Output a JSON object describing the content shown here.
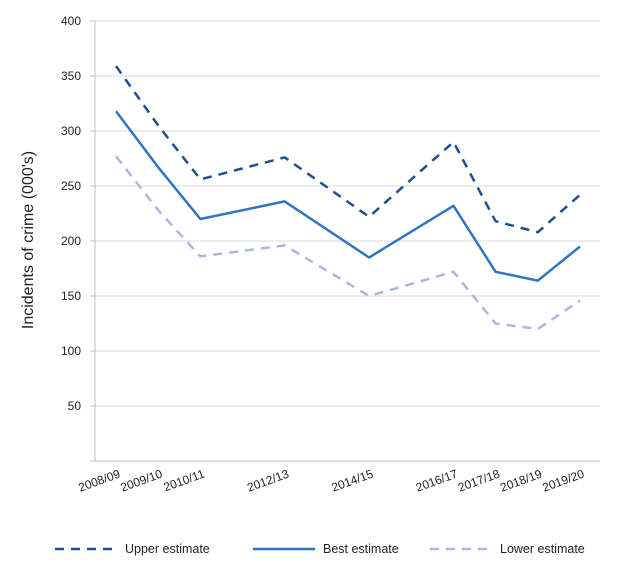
{
  "chart_data": {
    "type": "line",
    "title": "",
    "xlabel": "",
    "ylabel": "Incidents of crime (000's)",
    "ylim": [
      0,
      400
    ],
    "yticks": [
      50,
      100,
      150,
      200,
      250,
      300,
      350,
      400
    ],
    "grid": true,
    "legend_position": "bottom",
    "x": [
      "2008/09",
      "2009/10",
      "2010/11",
      "2012/13",
      "2014/15",
      "2016/17",
      "2017/18",
      "2018/19",
      "2019/20"
    ],
    "x_numeric": [
      2008,
      2009,
      2010,
      2012,
      2014,
      2016,
      2017,
      2018,
      2019
    ],
    "series": [
      {
        "name": "Upper estimate",
        "color": "#1f4e96",
        "style": "dashed",
        "values": [
          359,
          305,
          256,
          276,
          222,
          290,
          218,
          208,
          242
        ]
      },
      {
        "name": "Best estimate",
        "color": "#2e75c6",
        "style": "solid",
        "values": [
          318,
          267,
          220,
          236,
          185,
          232,
          172,
          164,
          195
        ]
      },
      {
        "name": "Lower estimate",
        "color": "#a9b8e0",
        "style": "dashed",
        "values": [
          277,
          228,
          186,
          196,
          150,
          172,
          125,
          120,
          146
        ]
      }
    ]
  }
}
